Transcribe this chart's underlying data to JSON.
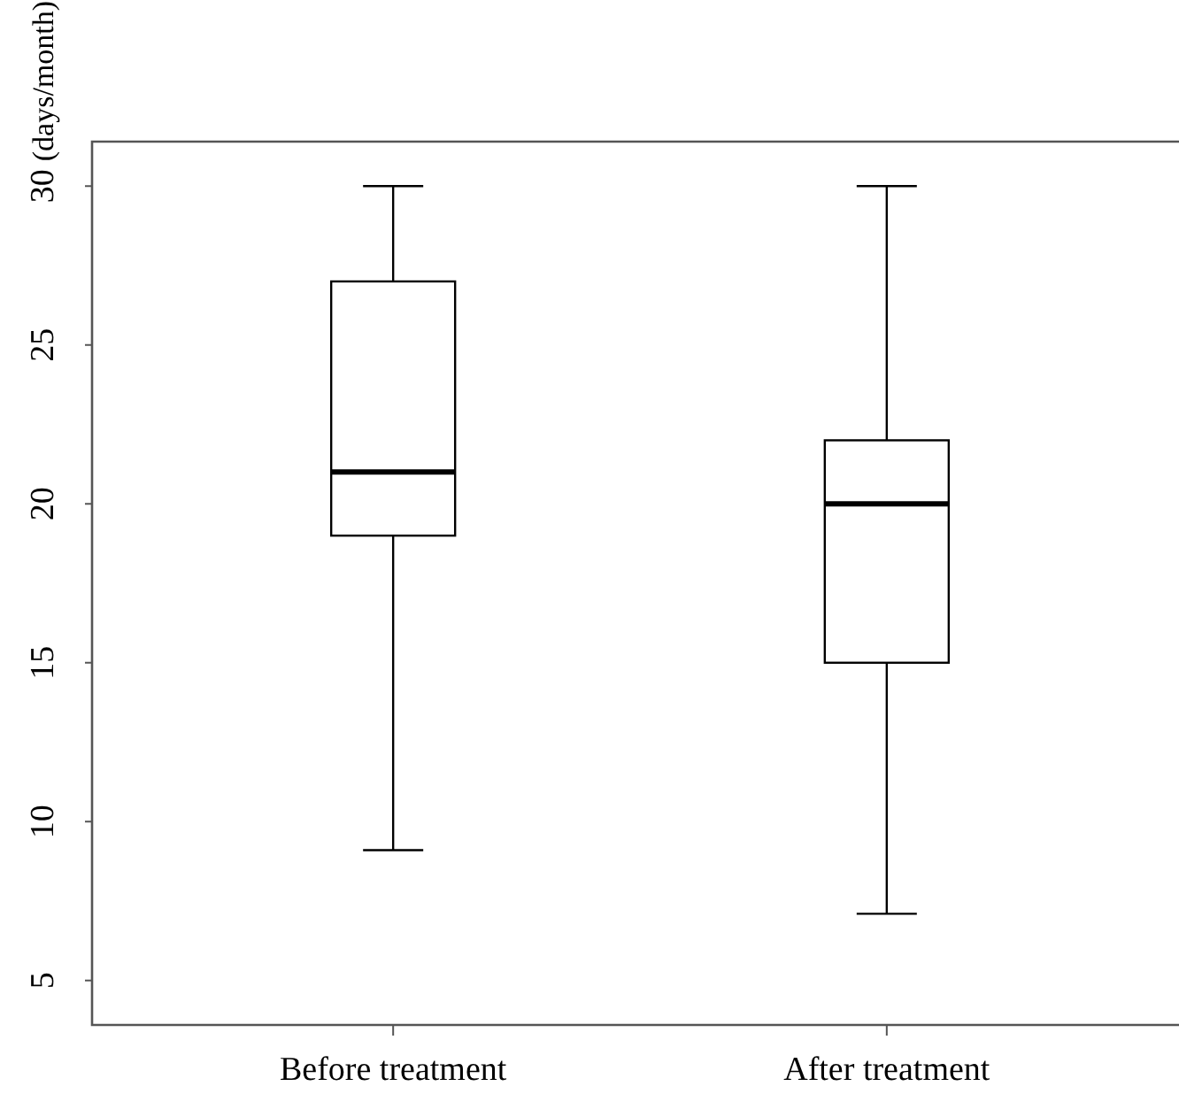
{
  "chart_data": {
    "type": "box",
    "ylabel": "(days/month)",
    "categories": [
      "Before treatment",
      "After treatment"
    ],
    "boxes": [
      {
        "low": 9.1,
        "q1": 19,
        "median": 21,
        "q3": 27,
        "high": 30
      },
      {
        "low": 7.1,
        "q1": 15,
        "median": 20,
        "q3": 22,
        "high": 30
      }
    ],
    "ylim": [
      3.6,
      31.4
    ],
    "yticks": [
      5,
      10,
      15,
      20,
      25,
      30
    ],
    "grid": false
  }
}
